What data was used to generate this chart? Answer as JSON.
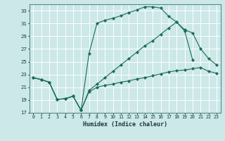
{
  "xlabel": "Humidex (Indice chaleur)",
  "bg_color": "#cce8e8",
  "grid_color": "#ffffff",
  "line_color": "#1a6b5a",
  "xlim": [
    -0.5,
    23.5
  ],
  "ylim": [
    17,
    34
  ],
  "yticks": [
    17,
    19,
    21,
    23,
    25,
    27,
    29,
    31,
    33
  ],
  "xticks": [
    0,
    1,
    2,
    3,
    4,
    5,
    6,
    7,
    8,
    9,
    10,
    11,
    12,
    13,
    14,
    15,
    16,
    17,
    18,
    19,
    20,
    21,
    22,
    23
  ],
  "line1_x": [
    0,
    1,
    2,
    3,
    4,
    5,
    6,
    7,
    8,
    9,
    10,
    11,
    12,
    13,
    14,
    15,
    16,
    17,
    18,
    19,
    20
  ],
  "line1_y": [
    22.5,
    22.2,
    21.8,
    19.1,
    19.2,
    19.6,
    17.4,
    26.3,
    31.0,
    31.5,
    31.8,
    32.2,
    32.7,
    33.1,
    33.6,
    33.6,
    33.4,
    32.1,
    31.2,
    29.8,
    25.3
  ],
  "line2_x": [
    0,
    1,
    2,
    3,
    4,
    5,
    6,
    7,
    8,
    9,
    10,
    11,
    12,
    13,
    14,
    15,
    16,
    17,
    18,
    19,
    20,
    21,
    22,
    23
  ],
  "line2_y": [
    22.5,
    22.2,
    21.8,
    19.1,
    19.2,
    19.6,
    17.4,
    20.5,
    21.5,
    22.5,
    23.5,
    24.5,
    25.5,
    26.5,
    27.5,
    28.3,
    29.3,
    30.3,
    31.2,
    30.0,
    29.5,
    27.0,
    25.5,
    24.5
  ],
  "line3_x": [
    0,
    1,
    2,
    3,
    4,
    5,
    6,
    7,
    8,
    9,
    10,
    11,
    12,
    13,
    14,
    15,
    16,
    17,
    18,
    19,
    20,
    21,
    22,
    23
  ],
  "line3_y": [
    22.5,
    22.2,
    21.8,
    19.1,
    19.2,
    19.6,
    17.4,
    20.3,
    21.0,
    21.3,
    21.5,
    21.8,
    22.0,
    22.3,
    22.5,
    22.8,
    23.1,
    23.4,
    23.6,
    23.7,
    23.9,
    24.1,
    23.5,
    23.2
  ]
}
